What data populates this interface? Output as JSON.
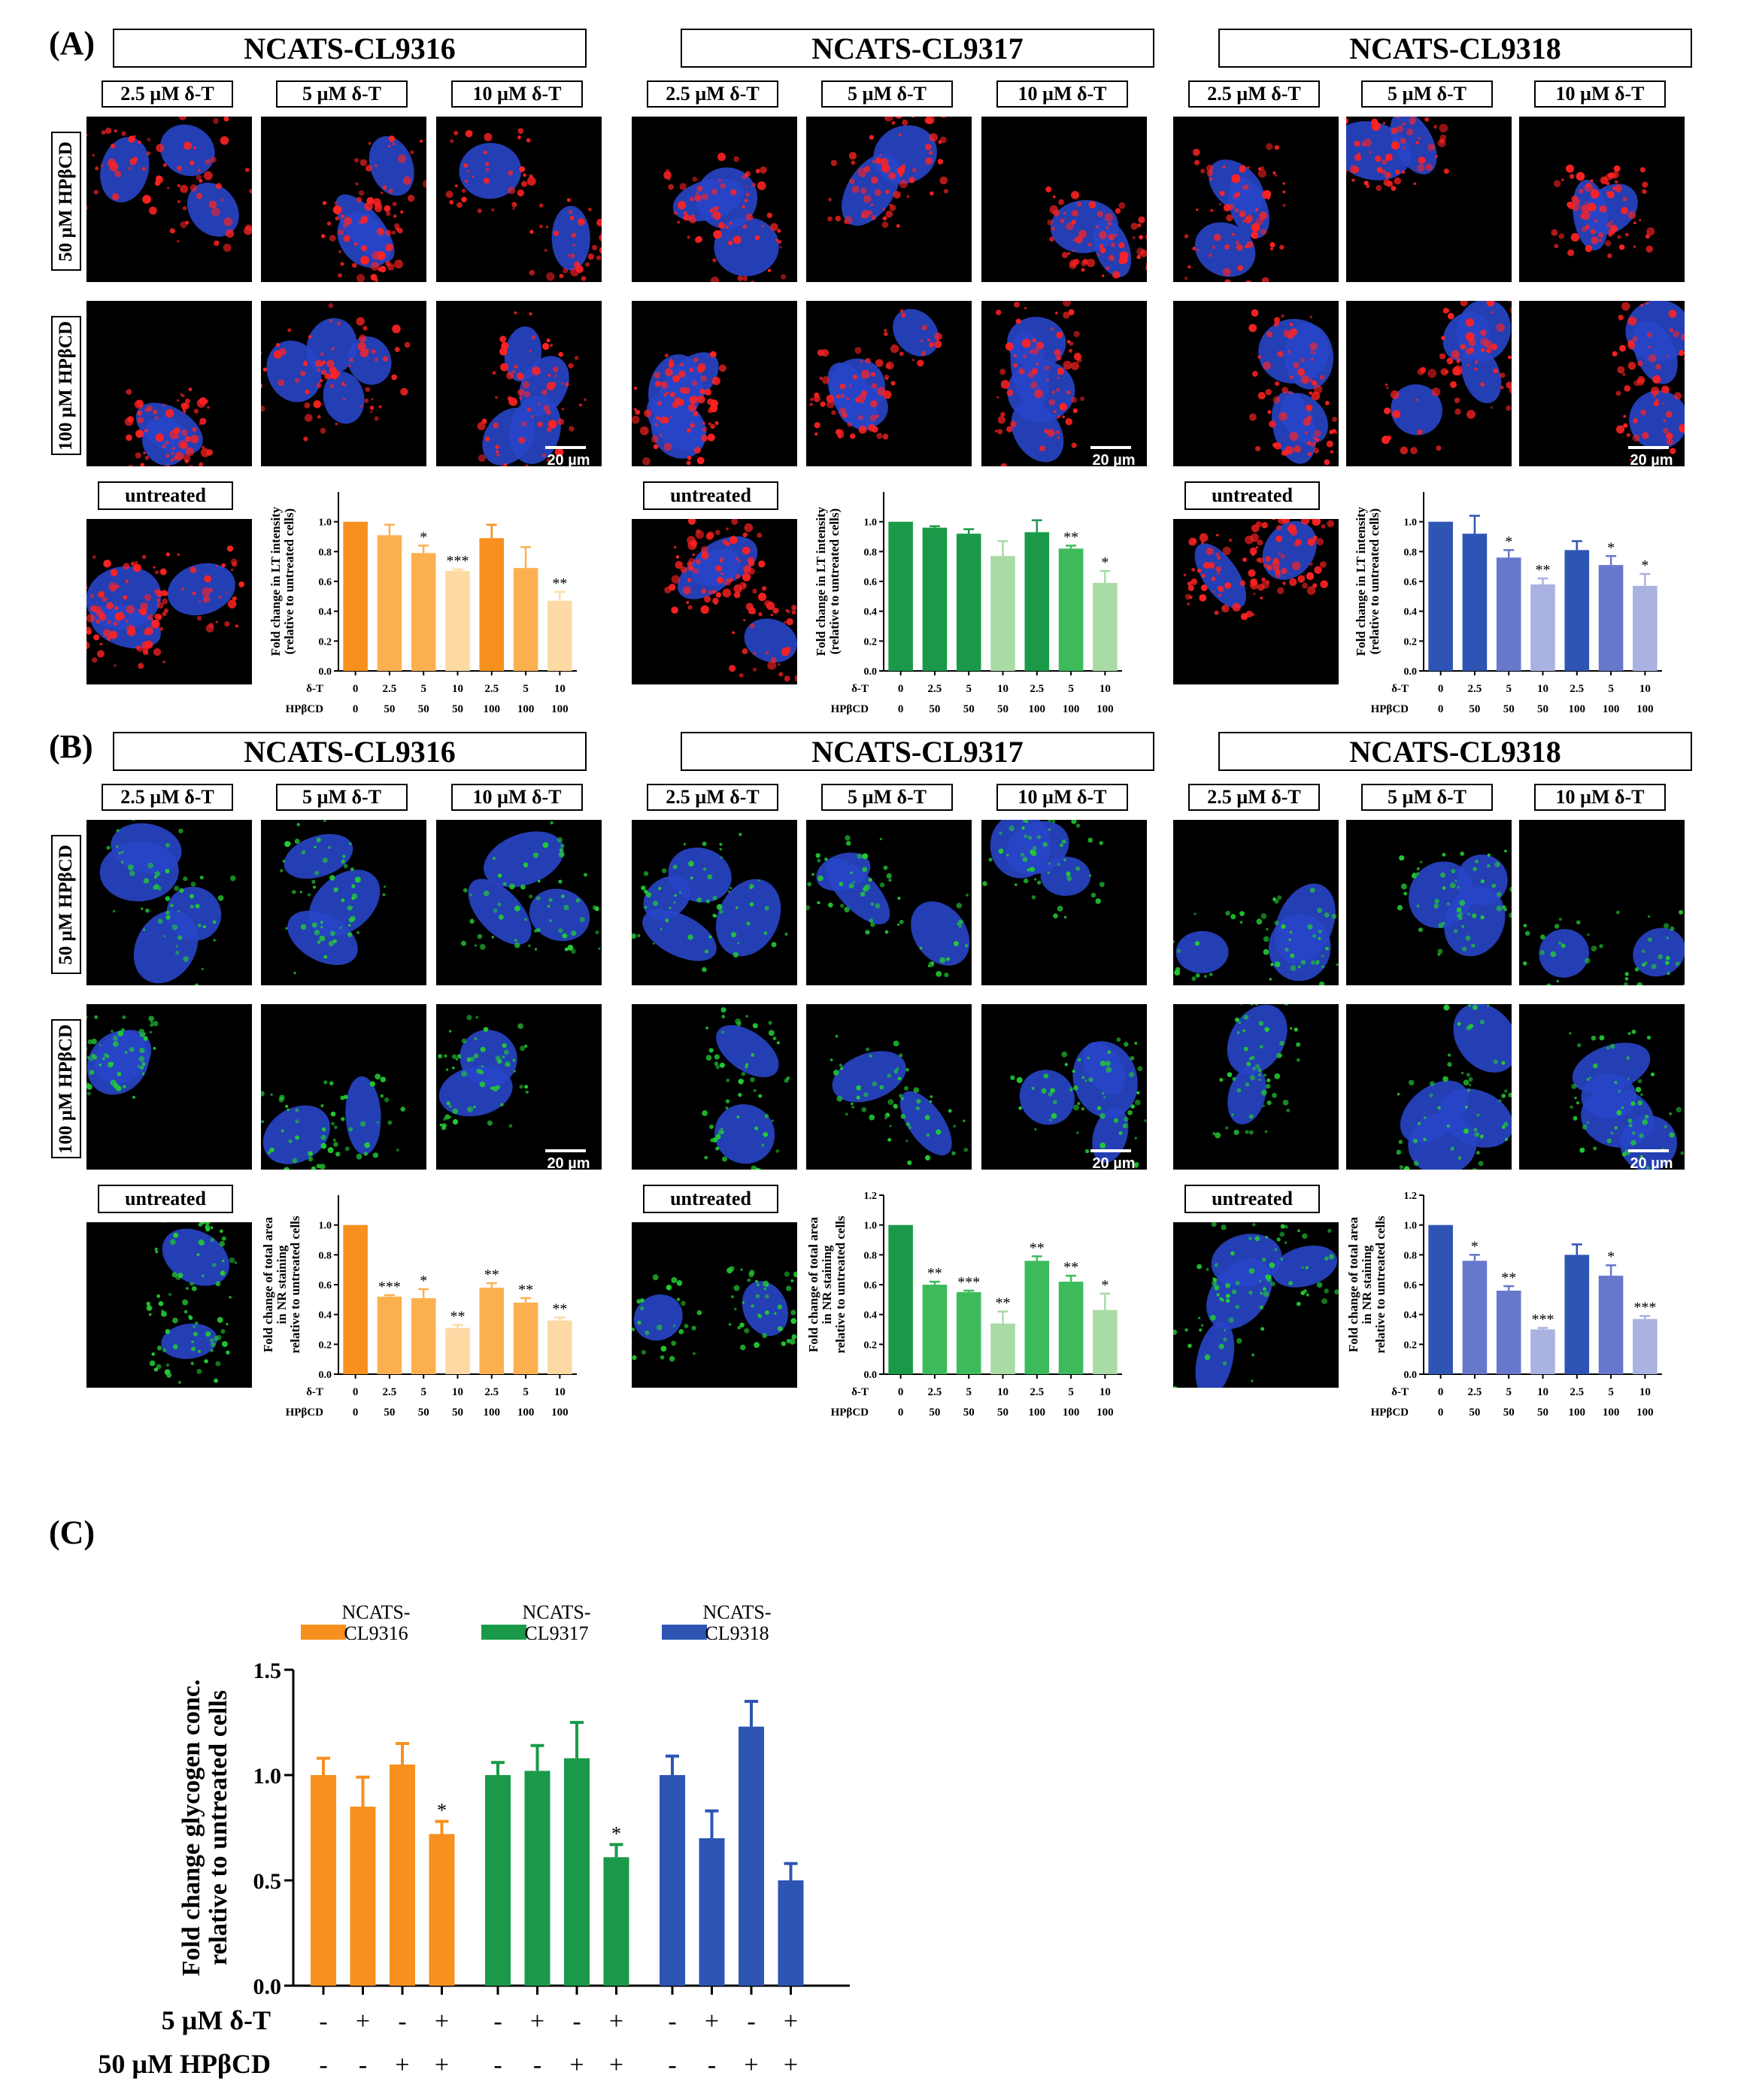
{
  "panels": {
    "A": {
      "letter": "(A)",
      "groups": [
        {
          "title": "NCATS-CL9316"
        },
        {
          "title": "NCATS-CL9317"
        },
        {
          "title": "NCATS-CL9318"
        }
      ],
      "row_labels": [
        "50 µM HPβCD",
        "100 µM HPβCD"
      ],
      "col_labels": [
        "2.5 µM δ-T",
        "5 µM δ-T",
        "10 µM δ-T"
      ],
      "scale_bar": "20 µm",
      "untreated": "untreated"
    },
    "B": {
      "letter": "(B)",
      "groups": [
        {
          "title": "NCATS-CL9316"
        },
        {
          "title": "NCATS-CL9317"
        },
        {
          "title": "NCATS-CL9318"
        }
      ],
      "row_labels": [
        "50 µM HPβCD",
        "100 µM HPβCD"
      ],
      "col_labels": [
        "2.5 µM δ-T",
        "5 µM δ-T",
        "10 µM δ-T"
      ],
      "scale_bar": "20 µm",
      "untreated": "untreated"
    },
    "C": {
      "letter": "(C)"
    }
  },
  "colors": {
    "orange": [
      "#f7901e",
      "#fbb050",
      "#fdd9a4"
    ],
    "green": [
      "#1a9a48",
      "#3dbb5c",
      "#a9dba4"
    ],
    "blue": [
      "#2e55b4",
      "#6677cc",
      "#aab2e2"
    ],
    "red_stain": "#ff2222",
    "green_stain": "#22cc33",
    "nucleus": "#2845c8"
  },
  "chart_data": [
    {
      "id": "A1",
      "type": "bar",
      "ylabel": "Fold change in LT intensity\n(relative to untreated cells)",
      "yticks": [
        "0.0",
        "0.2",
        "0.4",
        "0.6",
        "0.8",
        "1.0"
      ],
      "ylim": [
        0,
        1.2
      ],
      "row1_label": "δ-T",
      "row2_label": "HPβCD",
      "row1": [
        "0",
        "2.5",
        "5",
        "10",
        "2.5",
        "5",
        "10"
      ],
      "row2": [
        "0",
        "50",
        "50",
        "50",
        "100",
        "100",
        "100"
      ],
      "values": [
        1.0,
        0.91,
        0.79,
        0.67,
        0.89,
        0.69,
        0.47
      ],
      "errors": [
        0,
        0.07,
        0.05,
        0.01,
        0.09,
        0.14,
        0.06
      ],
      "sig": [
        "",
        "",
        "*",
        "***",
        "",
        "",
        "**"
      ],
      "palette": "orange",
      "shade": [
        0,
        1,
        1,
        2,
        0,
        1,
        2
      ]
    },
    {
      "id": "A2",
      "type": "bar",
      "ylabel": "Fold change in LT intensity\n(relative to untreated cells)",
      "yticks": [
        "0.0",
        "0.2",
        "0.4",
        "0.6",
        "0.8",
        "1.0"
      ],
      "ylim": [
        0,
        1.2
      ],
      "row1_label": "δ-T",
      "row2_label": "HPβCD",
      "row1": [
        "0",
        "2.5",
        "5",
        "10",
        "2.5",
        "5",
        "10"
      ],
      "row2": [
        "0",
        "50",
        "50",
        "50",
        "100",
        "100",
        "100"
      ],
      "values": [
        1.0,
        0.96,
        0.92,
        0.77,
        0.93,
        0.82,
        0.59
      ],
      "errors": [
        0,
        0.01,
        0.03,
        0.1,
        0.08,
        0.02,
        0.08
      ],
      "sig": [
        "",
        "",
        "",
        "",
        "",
        "**",
        "*"
      ],
      "palette": "green",
      "shade": [
        0,
        0,
        0,
        2,
        0,
        1,
        2
      ]
    },
    {
      "id": "A3",
      "type": "bar",
      "ylabel": "Fold change in LT intensity\n(relative to untreated cells)",
      "yticks": [
        "0.0",
        "0.2",
        "0.4",
        "0.6",
        "0.8",
        "1.0"
      ],
      "ylim": [
        0,
        1.2
      ],
      "row1_label": "δ-T",
      "row2_label": "HPβCD",
      "row1": [
        "0",
        "2.5",
        "5",
        "10",
        "2.5",
        "5",
        "10"
      ],
      "row2": [
        "0",
        "50",
        "50",
        "50",
        "100",
        "100",
        "100"
      ],
      "values": [
        1.0,
        0.92,
        0.76,
        0.58,
        0.81,
        0.71,
        0.57
      ],
      "errors": [
        0,
        0.12,
        0.05,
        0.04,
        0.06,
        0.06,
        0.08
      ],
      "sig": [
        "",
        "",
        "*",
        "**",
        "",
        "*",
        "*"
      ],
      "palette": "blue",
      "shade": [
        0,
        0,
        1,
        2,
        0,
        1,
        2
      ]
    },
    {
      "id": "B1",
      "type": "bar",
      "ylabel": "Fold change of total area\nin NR staining\nrelative to untreated cells",
      "yticks": [
        "0.0",
        "0.2",
        "0.4",
        "0.6",
        "0.8",
        "1.0"
      ],
      "ylim": [
        0,
        1.2
      ],
      "row1_label": "δ-T",
      "row2_label": "HPβCD",
      "row1": [
        "0",
        "2.5",
        "5",
        "10",
        "2.5",
        "5",
        "10"
      ],
      "row2": [
        "0",
        "50",
        "50",
        "50",
        "100",
        "100",
        "100"
      ],
      "values": [
        1.0,
        0.52,
        0.51,
        0.31,
        0.58,
        0.48,
        0.36
      ],
      "errors": [
        0,
        0.01,
        0.06,
        0.02,
        0.03,
        0.03,
        0.02
      ],
      "sig": [
        "",
        "***",
        "*",
        "**",
        "**",
        "**",
        "**"
      ],
      "palette": "orange",
      "shade": [
        0,
        1,
        1,
        2,
        1,
        1,
        2
      ]
    },
    {
      "id": "B2",
      "type": "bar",
      "ylabel": "Fold change of total area\nin NR staining\nrelative to untreated cells",
      "yticks": [
        "0.0",
        "0.2",
        "0.4",
        "0.6",
        "0.8",
        "1.0",
        "1.2"
      ],
      "ylim": [
        0,
        1.2
      ],
      "row1_label": "δ-T",
      "row2_label": "HPβCD",
      "row1": [
        "0",
        "2.5",
        "5",
        "10",
        "2.5",
        "5",
        "10"
      ],
      "row2": [
        "0",
        "50",
        "50",
        "50",
        "100",
        "100",
        "100"
      ],
      "values": [
        1.0,
        0.6,
        0.55,
        0.34,
        0.76,
        0.62,
        0.43
      ],
      "errors": [
        0,
        0.02,
        0.01,
        0.08,
        0.03,
        0.04,
        0.11
      ],
      "sig": [
        "",
        "**",
        "***",
        "**",
        "**",
        "**",
        "*"
      ],
      "palette": "green",
      "shade": [
        0,
        1,
        1,
        2,
        1,
        1,
        2
      ]
    },
    {
      "id": "B3",
      "type": "bar",
      "ylabel": "Fold change of total area\nin NR staining\nrelative to untreated cells",
      "yticks": [
        "0.0",
        "0.2",
        "0.4",
        "0.6",
        "0.8",
        "1.0",
        "1.2"
      ],
      "ylim": [
        0,
        1.2
      ],
      "row1_label": "δ-T",
      "row2_label": "HPβCD",
      "row1": [
        "0",
        "2.5",
        "5",
        "10",
        "2.5",
        "5",
        "10"
      ],
      "row2": [
        "0",
        "50",
        "50",
        "50",
        "100",
        "100",
        "100"
      ],
      "values": [
        1.0,
        0.76,
        0.56,
        0.3,
        0.8,
        0.66,
        0.37
      ],
      "errors": [
        0,
        0.04,
        0.03,
        0.01,
        0.07,
        0.07,
        0.02
      ],
      "sig": [
        "",
        "*",
        "**",
        "***",
        "",
        "*",
        "***"
      ],
      "palette": "blue",
      "shade": [
        0,
        1,
        1,
        2,
        0,
        1,
        2
      ]
    },
    {
      "id": "C",
      "type": "bar",
      "ylabel": "Fold change glycogen conc.\nrelative to untreated cells",
      "yticks": [
        "0.0",
        "0.5",
        "1.0",
        "1.5"
      ],
      "ylim": [
        0,
        1.5
      ],
      "legend": [
        {
          "name": "NCATS-\nCL9316",
          "palette": "orange"
        },
        {
          "name": "NCATS-\nCL9317",
          "palette": "green"
        },
        {
          "name": "NCATS-\nCL9318",
          "palette": "blue"
        }
      ],
      "row1_label": "5 µM δ-T",
      "row2_label": "50 µM HPβCD",
      "row1": [
        "-",
        "+",
        "-",
        "+"
      ],
      "row2": [
        "-",
        "-",
        "+",
        "+"
      ],
      "series": [
        {
          "palette": "orange",
          "values": [
            1.0,
            0.85,
            1.05,
            0.72
          ],
          "errors": [
            0.08,
            0.14,
            0.1,
            0.06
          ],
          "sig": [
            "",
            "",
            "",
            "*"
          ]
        },
        {
          "palette": "green",
          "values": [
            1.0,
            1.02,
            1.08,
            0.61
          ],
          "errors": [
            0.06,
            0.12,
            0.17,
            0.06
          ],
          "sig": [
            "",
            "",
            "",
            "*"
          ]
        },
        {
          "palette": "blue",
          "values": [
            1.0,
            0.7,
            1.23,
            0.5
          ],
          "errors": [
            0.09,
            0.13,
            0.12,
            0.08
          ],
          "sig": [
            "",
            "",
            "",
            ""
          ]
        }
      ]
    }
  ]
}
